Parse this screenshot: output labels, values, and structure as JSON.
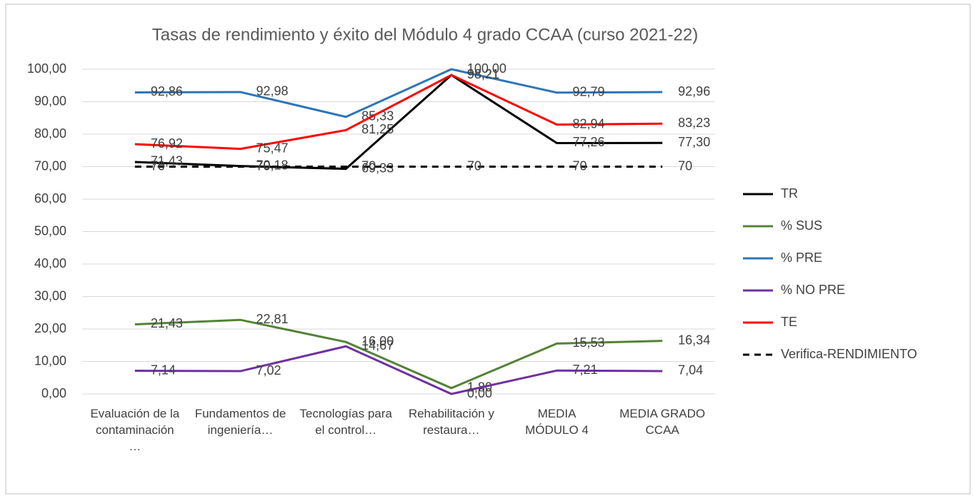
{
  "chart_data": {
    "type": "line",
    "title": "Tasas de rendimiento y éxito del Módulo 4 grado CCAA (curso 2021-22)",
    "categories": [
      "Evaluación de la contaminación …",
      "Fundamentos de ingeniería…",
      "Tecnologías para el control…",
      "Rehabilitación y restaura…",
      "MEDIA MÓDULO 4",
      "MEDIA GRADO CCAA"
    ],
    "series": [
      {
        "name": "TR",
        "color": "#000000",
        "values": [
          71.43,
          70.18,
          69.33,
          98.21,
          77.26,
          77.3
        ],
        "value_labels": [
          "71,43",
          "70,18",
          "69,33",
          "98,21",
          "77,26",
          "77,30"
        ]
      },
      {
        "name": "% SUS",
        "color": "#548235",
        "values": [
          21.43,
          22.81,
          16.0,
          1.8,
          15.53,
          16.34
        ],
        "value_labels": [
          "21,43",
          "22,81",
          "16,00",
          "1,80",
          "15,53",
          "16,34"
        ]
      },
      {
        "name": "% PRE",
        "color": "#2e75b6",
        "values": [
          92.86,
          92.98,
          85.33,
          100.0,
          92.79,
          92.96
        ],
        "value_labels": [
          "92,86",
          "92,98",
          "85,33",
          "100,00",
          "92,79",
          "92,96"
        ]
      },
      {
        "name": "% NO PRE",
        "color": "#7030a0",
        "values": [
          7.14,
          7.02,
          14.67,
          0.0,
          7.21,
          7.04
        ],
        "value_labels": [
          "7,14",
          "7,02",
          "14,67",
          "0,00",
          "7,21",
          "7,04"
        ]
      },
      {
        "name": "TE",
        "color": "#ff0000",
        "values": [
          76.92,
          75.47,
          81.25,
          98.21,
          82.94,
          83.23
        ],
        "value_labels": [
          "76,92",
          "75,47",
          "81,25",
          "98,21",
          "82,94",
          "83,23"
        ]
      },
      {
        "name": "Verifica-RENDIMIENTO",
        "color": "#000000",
        "dashed": true,
        "values": [
          70,
          70,
          70,
          70,
          70,
          70
        ]
      }
    ],
    "ylim": [
      0,
      100
    ],
    "yticks": [
      {
        "value": 0,
        "label": "0,00"
      },
      {
        "value": 10,
        "label": "10,00"
      },
      {
        "value": 20,
        "label": "20,00"
      },
      {
        "value": 30,
        "label": "30,00"
      },
      {
        "value": 40,
        "label": "40,00"
      },
      {
        "value": 50,
        "label": "50,00"
      },
      {
        "value": 60,
        "label": "60,00"
      },
      {
        "value": 70,
        "label": "70,00"
      },
      {
        "value": 80,
        "label": "80,00"
      },
      {
        "value": 90,
        "label": "90,00"
      },
      {
        "value": 100,
        "label": "100,00"
      }
    ],
    "grid": true,
    "legend": "right"
  }
}
